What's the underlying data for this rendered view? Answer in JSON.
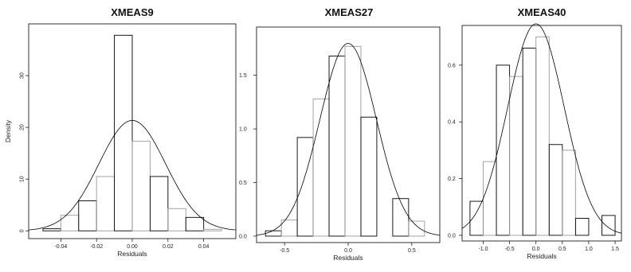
{
  "chart_data": [
    {
      "type": "bar",
      "title": "XMEAS9",
      "xlabel": "Residuals",
      "ylabel": "Density",
      "xlim": [
        -0.058,
        0.058
      ],
      "ylim": [
        -1.5,
        40
      ],
      "xticks": [
        -0.04,
        -0.02,
        0.0,
        0.02,
        0.04
      ],
      "xtick_labels": [
        "-0.04",
        "-0.02",
        "0.00",
        "0.02",
        "0.04"
      ],
      "yticks": [
        0,
        10,
        20,
        30
      ],
      "ytick_labels": [
        "0",
        "10",
        "20",
        "30"
      ],
      "bins": [
        [
          -0.05,
          -0.04,
          0.4
        ],
        [
          -0.04,
          -0.03,
          3.0
        ],
        [
          -0.03,
          -0.02,
          5.8
        ],
        [
          -0.02,
          -0.01,
          10.5
        ],
        [
          -0.01,
          0.0,
          37.8
        ],
        [
          0.0,
          0.01,
          17.3
        ],
        [
          0.01,
          0.02,
          10.5
        ],
        [
          0.02,
          0.03,
          4.3
        ],
        [
          0.03,
          0.04,
          2.6
        ],
        [
          0.04,
          0.05,
          0.3
        ]
      ],
      "normal_curve": {
        "mean": 0.0,
        "sd": 0.0187
      }
    },
    {
      "type": "bar",
      "title": "XMEAS27",
      "xlabel": "Residuals",
      "ylabel": "",
      "xlim": [
        -0.72,
        0.72
      ],
      "ylim": [
        -0.06,
        1.95
      ],
      "xticks": [
        -0.5,
        0.0,
        0.5
      ],
      "xtick_labels": [
        "-0.5",
        "0.0",
        "0.5"
      ],
      "yticks": [
        0.0,
        0.5,
        1.0,
        1.5
      ],
      "ytick_labels": [
        "0.0",
        "0.5",
        "1.0",
        "1.5"
      ],
      "bins": [
        [
          -0.65,
          -0.525,
          0.05
        ],
        [
          -0.525,
          -0.4,
          0.15
        ],
        [
          -0.4,
          -0.275,
          0.92
        ],
        [
          -0.275,
          -0.15,
          1.28
        ],
        [
          -0.15,
          -0.025,
          1.68
        ],
        [
          -0.025,
          0.1,
          1.77
        ],
        [
          0.1,
          0.225,
          1.11
        ],
        [
          0.225,
          0.35,
          0.0
        ],
        [
          0.35,
          0.475,
          0.35
        ],
        [
          0.475,
          0.6,
          0.14
        ]
      ],
      "normal_curve": {
        "mean": 0.0,
        "sd": 0.222
      }
    },
    {
      "type": "bar",
      "title": "XMEAS40",
      "xlabel": "Residuals",
      "ylabel": "",
      "xlim": [
        -1.4,
        1.62
      ],
      "ylim": [
        -0.02,
        0.74
      ],
      "xticks": [
        -1.0,
        -0.5,
        0.0,
        0.5,
        1.0,
        1.5
      ],
      "xtick_labels": [
        "-1.0",
        "-0.5",
        "0.0",
        "0.5",
        "1.0",
        "1.5"
      ],
      "yticks": [
        0.0,
        0.2,
        0.4,
        0.6
      ],
      "ytick_labels": [
        "0.0",
        "0.2",
        "0.4",
        "0.6"
      ],
      "bins": [
        [
          -1.25,
          -1.0,
          0.12
        ],
        [
          -1.0,
          -0.75,
          0.26
        ],
        [
          -0.75,
          -0.5,
          0.6
        ],
        [
          -0.5,
          -0.25,
          0.56
        ],
        [
          -0.25,
          0.0,
          0.66
        ],
        [
          0.0,
          0.25,
          0.7
        ],
        [
          0.25,
          0.5,
          0.32
        ],
        [
          0.5,
          0.75,
          0.3
        ],
        [
          0.75,
          1.0,
          0.06
        ],
        [
          1.0,
          1.25,
          0.0
        ],
        [
          1.25,
          1.5,
          0.07
        ]
      ],
      "normal_curve": {
        "mean": 0.0,
        "sd": 0.535
      }
    }
  ]
}
